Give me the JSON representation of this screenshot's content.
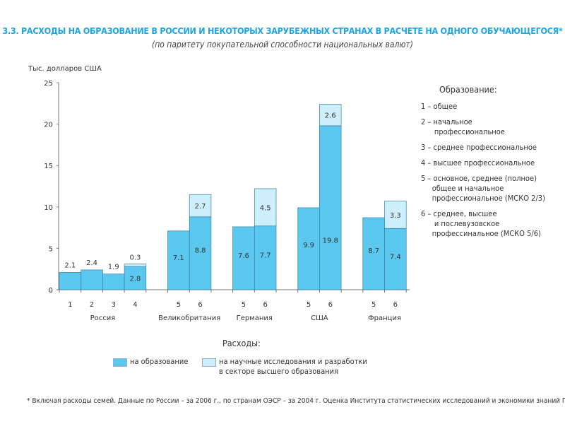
{
  "title": "3.3. РАСХОДЫ НА ОБРАЗОВАНИЕ В РОССИИ И НЕКОТОРЫХ ЗАРУБЕЖНЫХ СТРАНАХ В РАСЧЕТЕ НА ОДНОГО ОБУЧАЮЩЕГОСЯ*",
  "subtitle": "(по паритету покупательной способности национальных валют)",
  "colors": {
    "education": "#5bc8f0",
    "research": "#cdeefb",
    "title": "#1ea6e0"
  },
  "chart_data": {
    "type": "bar",
    "stacked": true,
    "ylabel": "Тыс. долларов США",
    "ylim": [
      0,
      25
    ],
    "yticks": [
      "0",
      "5",
      "10",
      "15",
      "20",
      "25"
    ],
    "grid": false,
    "series": [
      {
        "name": "на образование"
      },
      {
        "name": "на научные исследования и разработки в секторе высшего образования"
      }
    ],
    "groups": [
      {
        "country": "Россия",
        "bars": [
          {
            "code": "1",
            "education": 2.1,
            "research": null,
            "education_label": "2.1",
            "research_label": ""
          },
          {
            "code": "2",
            "education": 2.4,
            "research": null,
            "education_label": "2.4",
            "research_label": ""
          },
          {
            "code": "3",
            "education": 1.9,
            "research": null,
            "education_label": "1.9",
            "research_label": ""
          },
          {
            "code": "4",
            "education": 2.8,
            "research": 0.3,
            "education_label": "2.8",
            "research_label": "0.3"
          }
        ]
      },
      {
        "country": "Великобритания",
        "bars": [
          {
            "code": "5",
            "education": 7.1,
            "research": null,
            "education_label": "7.1",
            "research_label": ""
          },
          {
            "code": "6",
            "education": 8.8,
            "research": 2.7,
            "education_label": "8.8",
            "research_label": "2.7"
          }
        ]
      },
      {
        "country": "Германия",
        "bars": [
          {
            "code": "5",
            "education": 7.6,
            "research": null,
            "education_label": "7.6",
            "research_label": ""
          },
          {
            "code": "6",
            "education": 7.7,
            "research": 4.5,
            "education_label": "7.7",
            "research_label": "4.5"
          }
        ]
      },
      {
        "country": "США",
        "bars": [
          {
            "code": "5",
            "education": 9.9,
            "research": null,
            "education_label": "9.9",
            "research_label": ""
          },
          {
            "code": "6",
            "education": 19.8,
            "research": 2.6,
            "education_label": "19.8",
            "research_label": "2.6"
          }
        ]
      },
      {
        "country": "Франция",
        "bars": [
          {
            "code": "5",
            "education": 8.7,
            "research": null,
            "education_label": "8.7",
            "research_label": ""
          },
          {
            "code": "6",
            "education": 7.4,
            "research": 3.3,
            "education_label": "7.4",
            "research_label": "3.3"
          }
        ]
      }
    ]
  },
  "legend": {
    "title": "Образование:",
    "items": [
      "1 – общее",
      "2 – начальное\n      профессиональное",
      "3 – среднее профессиональное",
      "4 – высшее профессиональное",
      "5 – основное, среднее (полное)\n     общее и начальное\n     профессиональное (МСКО 2/3)",
      "6 – среднее, высшее\n      и послевузовское\n     профессинальное (МСКО 5/6)"
    ]
  },
  "expenses": {
    "title": "Расходы:",
    "education": "на образование",
    "research": "на научные исследования и разработки\nв секторе высшего образования"
  },
  "footnote": "* Включая расходы семей. Данные по России – за 2006 г., по странам ОЭСР – за 2004 г. Оценка Института статистических исследований и экономики знаний ГУ–ВШЭ."
}
